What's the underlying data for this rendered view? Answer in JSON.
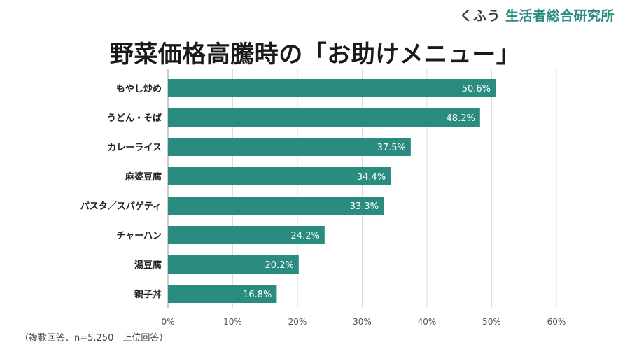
{
  "brand": {
    "kana": "くふう",
    "name": "生活者総合研究所"
  },
  "note": "（複数回答、n=5,250　上位回答）",
  "chart_data": {
    "type": "bar",
    "orientation": "horizontal",
    "title": "野菜価格高騰時の「お助けメニュー」",
    "categories": [
      "もやし炒め",
      "うどん・そば",
      "カレーライス",
      "麻婆豆腐",
      "パスタ／スパゲティ",
      "チャーハン",
      "湯豆腐",
      "親子丼"
    ],
    "values": [
      50.6,
      48.2,
      37.5,
      34.4,
      33.3,
      24.2,
      20.2,
      16.8
    ],
    "value_labels": [
      "50.6%",
      "48.2%",
      "37.5%",
      "34.4%",
      "33.3%",
      "24.2%",
      "20.2%",
      "16.8%"
    ],
    "xlim": [
      0,
      60
    ],
    "ticks": [
      0,
      10,
      20,
      30,
      40,
      50,
      60
    ],
    "tick_labels": [
      "0%",
      "10%",
      "20%",
      "30%",
      "40%",
      "50%",
      "60%"
    ],
    "grid": true,
    "bar_color": "#2a8c7e"
  }
}
